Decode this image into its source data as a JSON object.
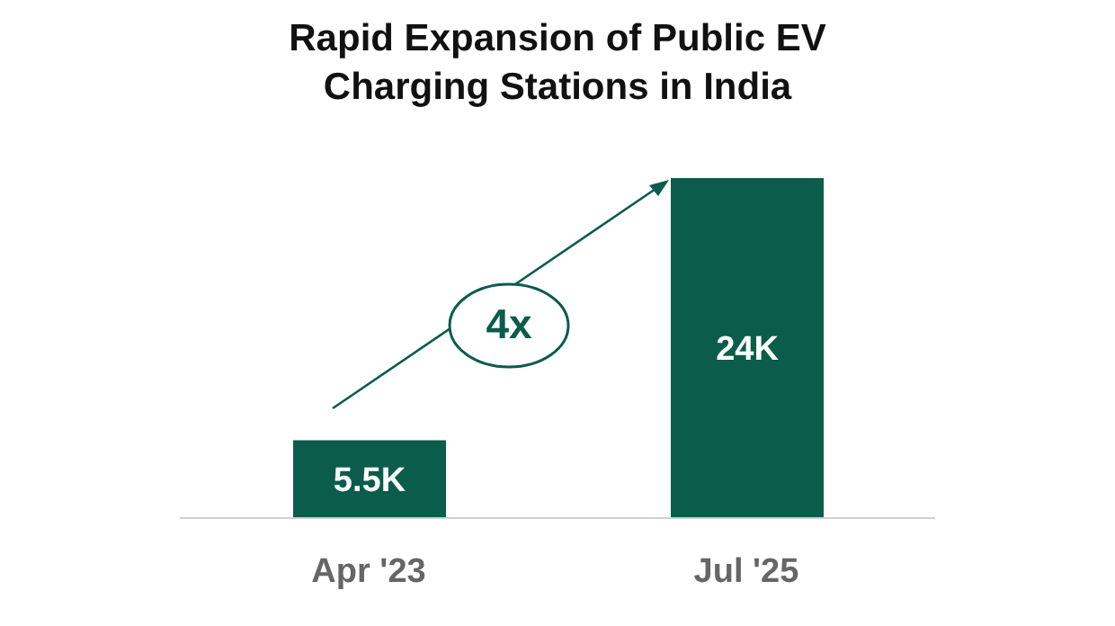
{
  "chart_data": {
    "type": "bar",
    "title": "Rapid Expansion of Public EV Charging Stations in India",
    "categories": [
      "Apr '23",
      "Jul '25"
    ],
    "values": [
      5500,
      24000
    ],
    "value_labels": [
      "5.5K",
      "24K"
    ],
    "color": "#0b5c4b",
    "annotations": [
      "4x"
    ]
  }
}
